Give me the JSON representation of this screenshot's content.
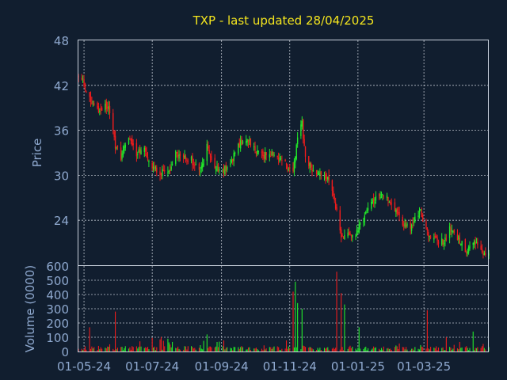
{
  "chart_data": {
    "type": "candlestick",
    "title": "TXP - last updated 28/04/2025",
    "price_panel": {
      "ylabel": "Price",
      "ylim": [
        18,
        48
      ],
      "yticks": [
        24,
        30,
        36,
        42,
        48
      ],
      "grid": true
    },
    "volume_panel": {
      "ylabel": "Volume (0000)",
      "ylim": [
        0,
        600
      ],
      "yticks": [
        0,
        100,
        200,
        300,
        400,
        500,
        600
      ],
      "grid": true
    },
    "x_ticks": [
      "01-05-24",
      "01-07-24",
      "01-09-24",
      "01-11-24",
      "01-01-25",
      "01-03-25"
    ],
    "x_tick_dates": [
      "2024-05-01",
      "2024-07-01",
      "2024-09-01",
      "2024-11-01",
      "2025-01-01",
      "2025-03-01"
    ],
    "date_range": [
      "2024-04-26",
      "2025-04-28"
    ],
    "colors": {
      "up": "#22e82a",
      "down": "#ee1c1c",
      "background": "#111e2f"
    },
    "close_anchors": [
      [
        "2024-04-26",
        43.3
      ],
      [
        "2024-05-03",
        41.5
      ],
      [
        "2024-05-10",
        39.0
      ],
      [
        "2024-05-17",
        38.8
      ],
      [
        "2024-05-23",
        39.5
      ],
      [
        "2024-05-29",
        34.0
      ],
      [
        "2024-06-03",
        32.5
      ],
      [
        "2024-06-10",
        35.0
      ],
      [
        "2024-06-17",
        33.0
      ],
      [
        "2024-06-24",
        33.5
      ],
      [
        "2024-07-01",
        31.0
      ],
      [
        "2024-07-08",
        30.5
      ],
      [
        "2024-07-15",
        30.0
      ],
      [
        "2024-07-22",
        33.0
      ],
      [
        "2024-07-29",
        32.5
      ],
      [
        "2024-08-05",
        32.0
      ],
      [
        "2024-08-12",
        30.5
      ],
      [
        "2024-08-19",
        34.0
      ],
      [
        "2024-08-26",
        31.0
      ],
      [
        "2024-09-02",
        30.5
      ],
      [
        "2024-09-09",
        31.5
      ],
      [
        "2024-09-16",
        34.0
      ],
      [
        "2024-09-23",
        35.0
      ],
      [
        "2024-09-30",
        33.5
      ],
      [
        "2024-10-07",
        32.5
      ],
      [
        "2024-10-14",
        33.0
      ],
      [
        "2024-10-21",
        32.5
      ],
      [
        "2024-10-28",
        31.5
      ],
      [
        "2024-11-04",
        30.5
      ],
      [
        "2024-11-08",
        35.0
      ],
      [
        "2024-11-12",
        37.0
      ],
      [
        "2024-11-15",
        32.0
      ],
      [
        "2024-11-22",
        30.5
      ],
      [
        "2024-11-29",
        30.0
      ],
      [
        "2024-12-06",
        29.5
      ],
      [
        "2024-12-13",
        25.0
      ],
      [
        "2024-12-17",
        21.5
      ],
      [
        "2024-12-24",
        22.0
      ],
      [
        "2024-12-31",
        22.5
      ],
      [
        "2025-01-07",
        24.5
      ],
      [
        "2025-01-14",
        26.5
      ],
      [
        "2025-01-21",
        27.5
      ],
      [
        "2025-01-28",
        27.0
      ],
      [
        "2025-02-04",
        25.0
      ],
      [
        "2025-02-11",
        23.5
      ],
      [
        "2025-02-18",
        23.0
      ],
      [
        "2025-02-25",
        25.5
      ],
      [
        "2025-03-04",
        22.5
      ],
      [
        "2025-03-11",
        21.5
      ],
      [
        "2025-03-18",
        21.0
      ],
      [
        "2025-03-25",
        23.0
      ],
      [
        "2025-04-01",
        21.5
      ],
      [
        "2025-04-08",
        20.0
      ],
      [
        "2025-04-15",
        21.0
      ],
      [
        "2025-04-22",
        19.5
      ],
      [
        "2025-04-28",
        19.2
      ]
    ],
    "volume_spikes": [
      [
        "2024-05-06",
        170
      ],
      [
        "2024-05-29",
        280
      ],
      [
        "2024-07-15",
        90
      ],
      [
        "2024-08-19",
        120
      ],
      [
        "2024-11-04",
        420
      ],
      [
        "2024-11-06",
        490
      ],
      [
        "2024-11-08",
        340
      ],
      [
        "2024-11-12",
        300
      ],
      [
        "2024-12-13",
        560
      ],
      [
        "2024-12-17",
        410
      ],
      [
        "2024-12-20",
        330
      ],
      [
        "2025-01-02",
        170
      ],
      [
        "2025-03-04",
        290
      ],
      [
        "2025-04-14",
        140
      ]
    ]
  }
}
